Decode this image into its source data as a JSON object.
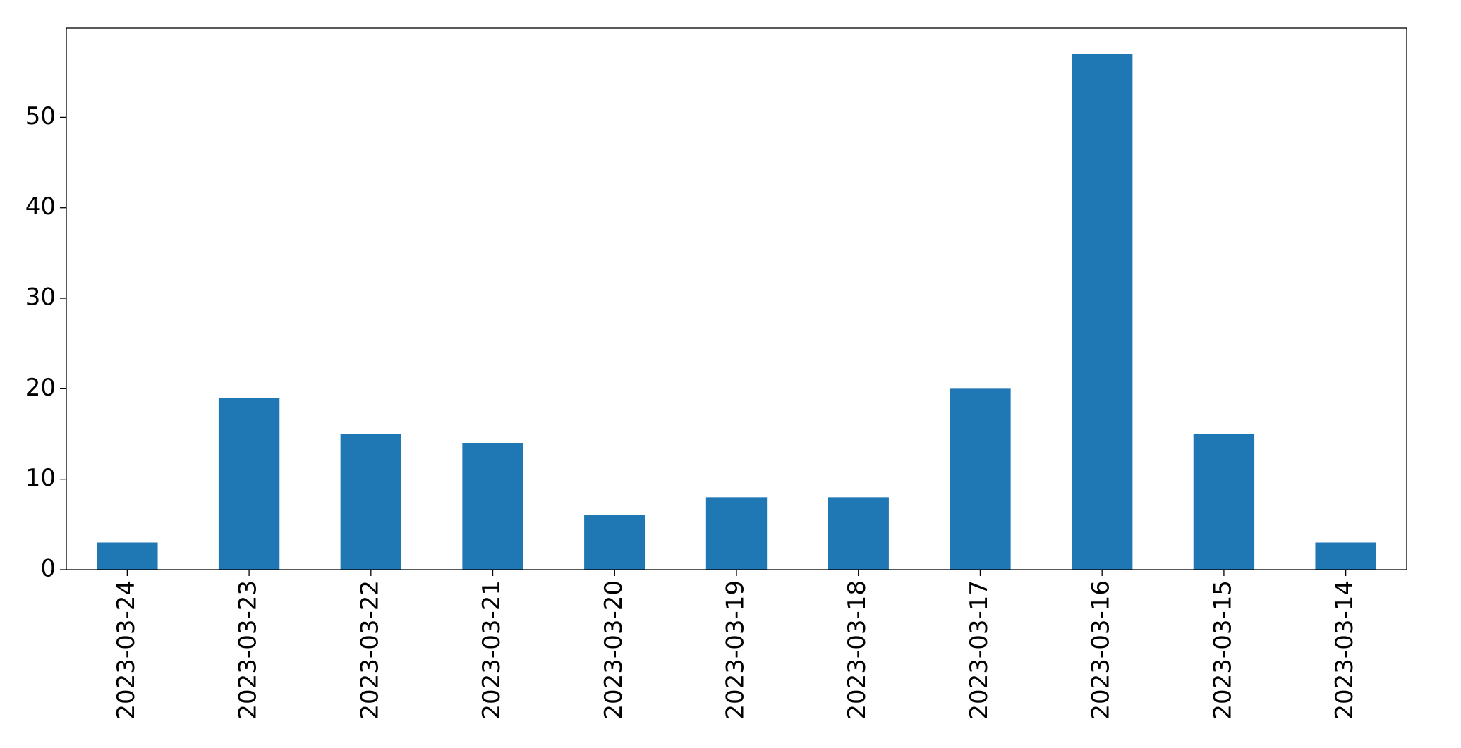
{
  "chart_data": {
    "type": "bar",
    "categories": [
      "2023-03-24",
      "2023-03-23",
      "2023-03-22",
      "2023-03-21",
      "2023-03-20",
      "2023-03-19",
      "2023-03-18",
      "2023-03-17",
      "2023-03-16",
      "2023-03-15",
      "2023-03-14"
    ],
    "values": [
      3,
      19,
      15,
      14,
      6,
      8,
      8,
      20,
      57,
      15,
      3
    ],
    "color": "#1f77b4",
    "ylim": [
      0,
      59.85
    ],
    "yticks": [
      0,
      10,
      20,
      30,
      40,
      50
    ],
    "grid": false
  }
}
